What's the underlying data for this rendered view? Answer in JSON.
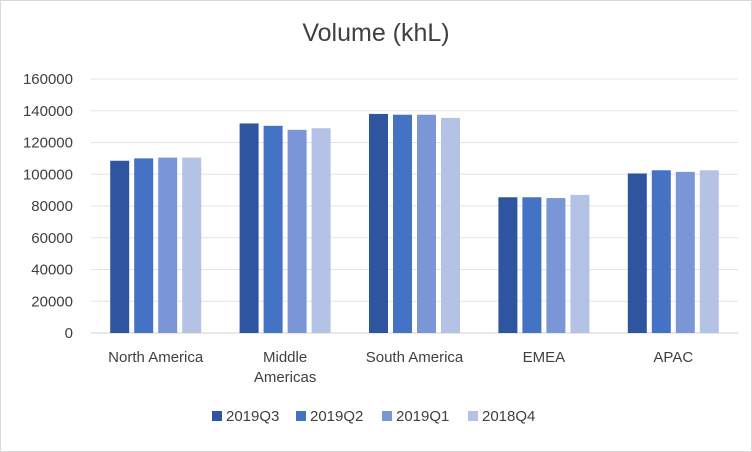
{
  "chart_data": {
    "type": "bar",
    "title": "Volume (khL)",
    "xlabel": "",
    "ylabel": "",
    "categories": [
      [
        "North America"
      ],
      [
        "Middle",
        "Americas"
      ],
      [
        "South America"
      ],
      [
        "EMEA"
      ],
      [
        "APAC"
      ]
    ],
    "series": [
      {
        "name": "2019Q3",
        "color": "#2f55a0",
        "values": [
          108500,
          132000,
          138000,
          85500,
          100500
        ]
      },
      {
        "name": "2019Q2",
        "color": "#4472c4",
        "values": [
          110000,
          130500,
          137500,
          85500,
          102500
        ]
      },
      {
        "name": "2019Q1",
        "color": "#7a96d6",
        "values": [
          110500,
          128000,
          137500,
          85000,
          101500
        ]
      },
      {
        "name": "2018Q4",
        "color": "#b4c2e6",
        "values": [
          110500,
          129000,
          135500,
          87000,
          102500
        ]
      }
    ],
    "ylim": [
      0,
      160000
    ],
    "yticks": [
      0,
      20000,
      40000,
      60000,
      80000,
      100000,
      120000,
      140000,
      160000
    ],
    "grid": true,
    "legend_position": "bottom"
  }
}
